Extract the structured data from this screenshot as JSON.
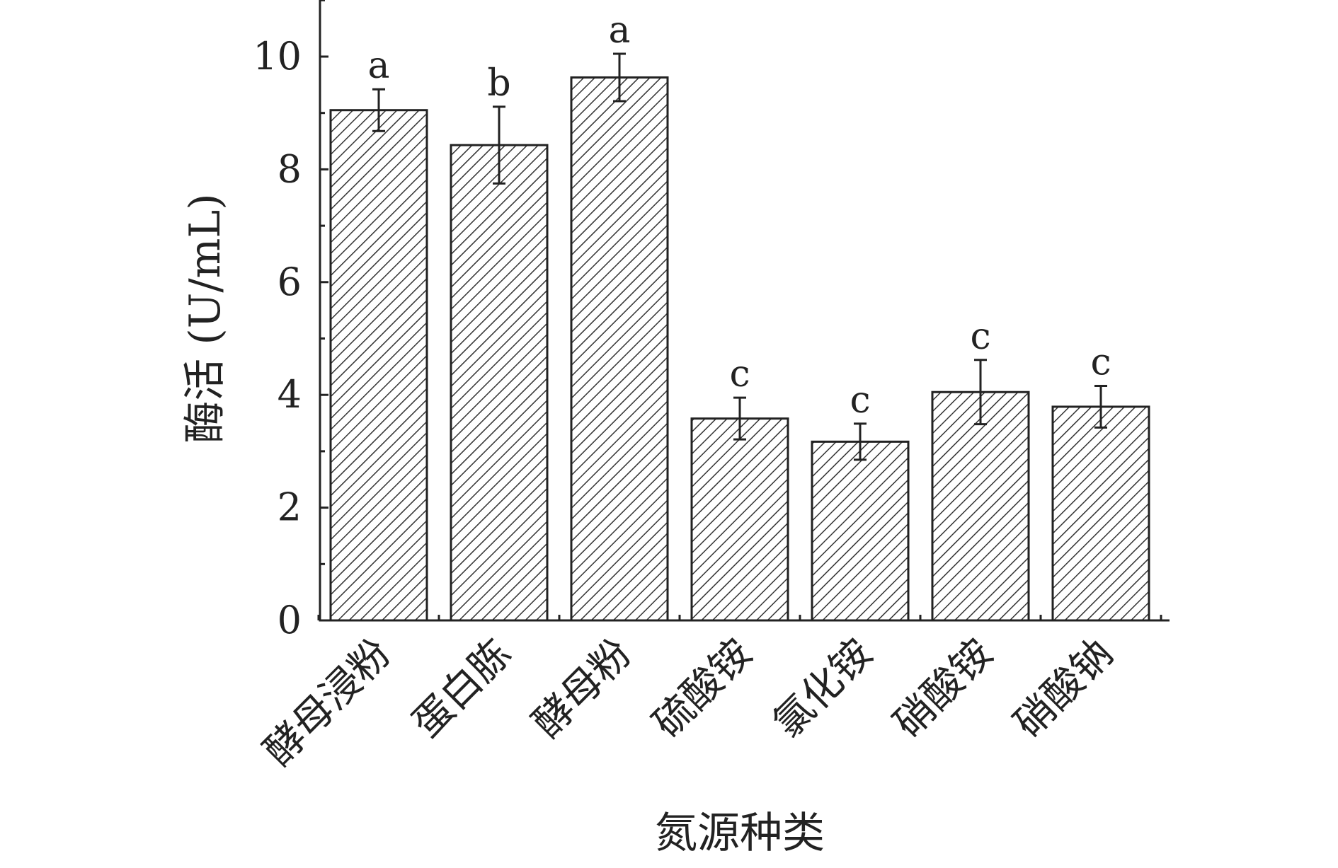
{
  "chart_data": {
    "type": "bar",
    "title": "",
    "xlabel": "氮源种类",
    "ylabel": "酶活 (U/mL)",
    "ylim": [
      0,
      11
    ],
    "yticks": [
      0,
      2,
      4,
      6,
      8,
      10
    ],
    "categories": [
      "酵母浸粉",
      "蛋白胨",
      "酵母粉",
      "硫酸铵",
      "氯化铵",
      "硝酸铵",
      "硝酸钠"
    ],
    "values": [
      9.05,
      8.43,
      9.63,
      3.58,
      3.17,
      4.05,
      3.79
    ],
    "errors": [
      0.37,
      0.68,
      0.42,
      0.37,
      0.32,
      0.57,
      0.37
    ],
    "significance": [
      "a",
      "b",
      "a",
      "c",
      "c",
      "c",
      "c"
    ],
    "bar_fill": "diagonal-hatch",
    "colors": {
      "bar_stroke": "#222222",
      "hatch": "#333333",
      "axis": "#222222"
    },
    "grid": false,
    "legend": "none"
  }
}
